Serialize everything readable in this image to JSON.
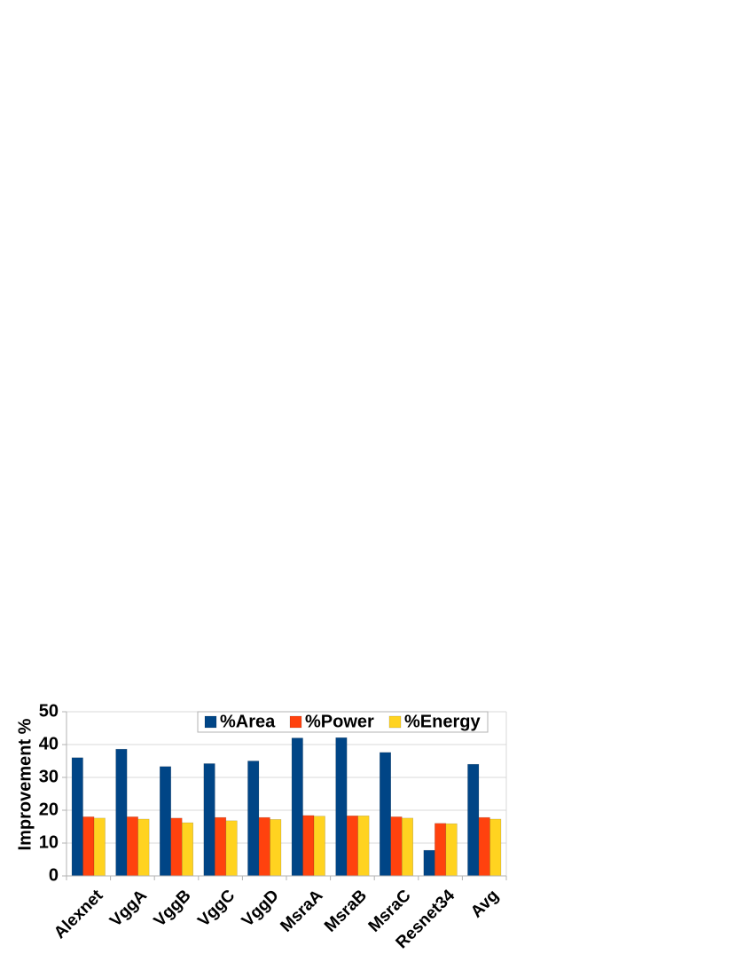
{
  "chart_data": {
    "type": "bar",
    "title": "",
    "xlabel": "",
    "ylabel": "Improvement %",
    "ylim": [
      0,
      50
    ],
    "yticks": [
      0,
      10,
      20,
      30,
      40,
      50
    ],
    "grid": true,
    "legend_position": "top-right",
    "categories": [
      "Alexnet",
      "VggA",
      "VggB",
      "VggC",
      "VggD",
      "MsraA",
      "MsraB",
      "MsraC",
      "Resnet34",
      "Avg"
    ],
    "series": [
      {
        "name": "%Area",
        "color": "#004586",
        "values": [
          36.0,
          38.6,
          33.3,
          34.2,
          35.0,
          42.0,
          42.1,
          37.6,
          7.8,
          34.0
        ]
      },
      {
        "name": "%Power",
        "color": "#ff420e",
        "values": [
          18.0,
          18.0,
          17.6,
          17.8,
          17.8,
          18.4,
          18.3,
          18.0,
          16.0,
          17.8
        ]
      },
      {
        "name": "%Energy",
        "color": "#ffd320",
        "values": [
          17.6,
          17.3,
          16.2,
          16.8,
          17.2,
          18.2,
          18.3,
          17.6,
          15.9,
          17.3
        ]
      }
    ]
  }
}
